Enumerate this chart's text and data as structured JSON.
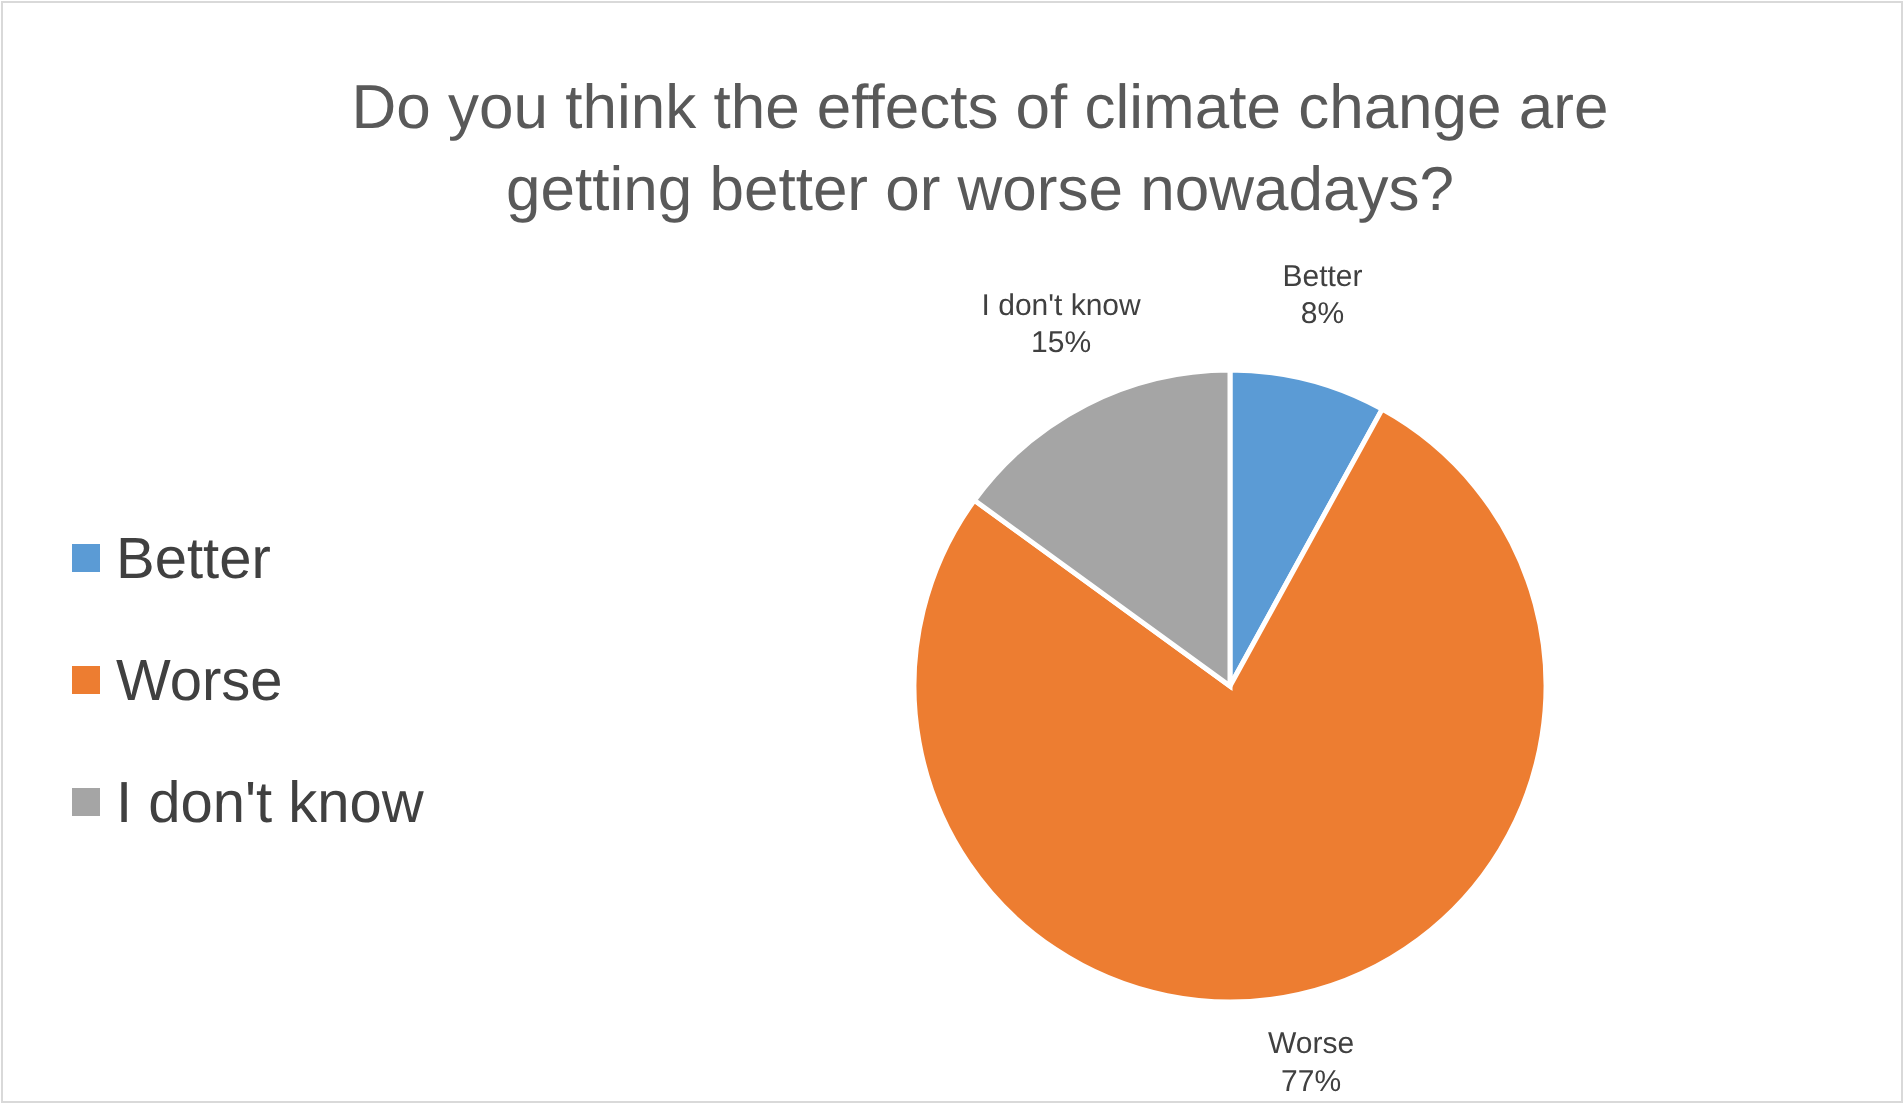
{
  "chart_data": {
    "type": "pie",
    "title": "Do you think the effects of climate change are getting better or worse nowadays?",
    "categories": [
      "Better",
      "Worse",
      "I don't know"
    ],
    "values": [
      8,
      77,
      15
    ],
    "value_labels": [
      "8%",
      "77%",
      "15%"
    ],
    "colors": [
      "#5b9bd5",
      "#ed7d31",
      "#a5a5a5"
    ],
    "legend": "left"
  }
}
